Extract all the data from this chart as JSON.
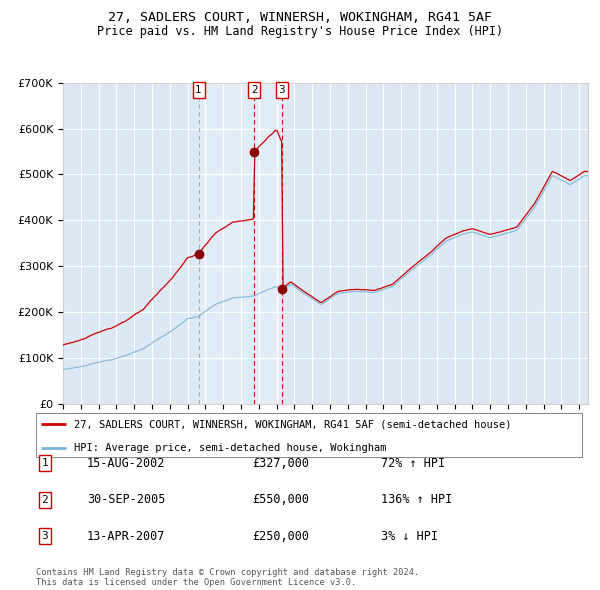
{
  "title1": "27, SADLERS COURT, WINNERSH, WOKINGHAM, RG41 5AF",
  "title2": "Price paid vs. HM Land Registry's House Price Index (HPI)",
  "legend_property": "27, SADLERS COURT, WINNERSH, WOKINGHAM, RG41 5AF (semi-detached house)",
  "legend_hpi": "HPI: Average price, semi-detached house, Wokingham",
  "transactions": [
    {
      "num": 1,
      "date": "15-AUG-2002",
      "price": 327000,
      "pct": "72%",
      "dir": "↑",
      "year_x": 2002.619
    },
    {
      "num": 2,
      "date": "30-SEP-2005",
      "price": 550000,
      "pct": "136%",
      "dir": "↑",
      "year_x": 2005.747
    },
    {
      "num": 3,
      "date": "13-APR-2007",
      "price": 250000,
      "pct": "3%",
      "dir": "↓",
      "year_x": 2007.286
    }
  ],
  "footnote1": "Contains HM Land Registry data © Crown copyright and database right 2024.",
  "footnote2": "This data is licensed under the Open Government Licence v3.0.",
  "ylim": [
    0,
    700000
  ],
  "xlim_start": 1995.0,
  "xlim_end": 2024.5,
  "plot_bg": "#dce9f5",
  "grid_color": "#ffffff",
  "red_line_color": "#cc0000",
  "blue_line_color": "#7ab4d8",
  "marker_color": "#8b0000",
  "vline_gray": "#aaaaaa",
  "vline_red": "#cc0000"
}
